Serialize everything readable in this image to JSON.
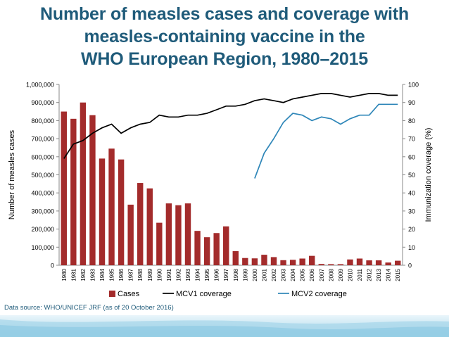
{
  "title_lines": [
    "Number of measles cases and coverage with",
    "measles-containing vaccine in the",
    "WHO European Region, 1980–2015"
  ],
  "source": "Data  source: WHO/UNICEF JRF (as of 20 October 2016)",
  "colors": {
    "title": "#1f5b7a",
    "cases_bar": "#a32b2b",
    "mcv1_line": "#000000",
    "mcv2_line": "#2e86b8"
  },
  "chart_data": {
    "type": "bar",
    "categories": [
      "1980",
      "1981",
      "1982",
      "1983",
      "1984",
      "1985",
      "1986",
      "1987",
      "1988",
      "1989",
      "1990",
      "1991",
      "1992",
      "1993",
      "1994",
      "1995",
      "1996",
      "1997",
      "1998",
      "1999",
      "2000",
      "2001",
      "2002",
      "2003",
      "2004",
      "2005",
      "2006",
      "2007",
      "2008",
      "2009",
      "2010",
      "2011",
      "2012",
      "2013",
      "2014",
      "2015"
    ],
    "series": [
      {
        "name": "Cases",
        "type": "bar",
        "axis": "left",
        "values": [
          850000,
          810000,
          900000,
          830000,
          590000,
          645000,
          585000,
          335000,
          455000,
          425000,
          235000,
          342000,
          332000,
          342000,
          190000,
          155000,
          178000,
          215000,
          78000,
          40000,
          38000,
          58000,
          45000,
          28000,
          30000,
          37000,
          52000,
          7000,
          6000,
          6000,
          32000,
          37000,
          27000,
          27000,
          15000,
          25000
        ]
      },
      {
        "name": "MCV1 coverage",
        "type": "line",
        "axis": "right",
        "values": [
          59,
          67,
          69,
          73,
          76,
          78,
          73,
          76,
          78,
          79,
          83,
          82,
          82,
          83,
          83,
          84,
          86,
          88,
          88,
          89,
          91,
          92,
          91,
          90,
          92,
          93,
          94,
          95,
          95,
          94,
          93,
          94,
          95,
          95,
          94,
          94
        ]
      },
      {
        "name": "MCV2 coverage",
        "type": "line",
        "axis": "right",
        "values": [
          null,
          null,
          null,
          null,
          null,
          null,
          null,
          null,
          null,
          null,
          null,
          null,
          null,
          null,
          null,
          null,
          null,
          null,
          null,
          null,
          48,
          62,
          70,
          79,
          84,
          83,
          80,
          82,
          81,
          78,
          81,
          83,
          83,
          89,
          89,
          89
        ]
      }
    ],
    "ylabel": "Number of measles cases",
    "y2label": "Immunization coverage (%)",
    "ylim": [
      0,
      1000000
    ],
    "y2lim": [
      0,
      100
    ],
    "yticks": [
      "0",
      "100,000",
      "200,000",
      "300,000",
      "400,000",
      "500,000",
      "600,000",
      "700,000",
      "800,000",
      "900,000",
      "1,000,000"
    ],
    "y2ticks": [
      "0",
      "10",
      "20",
      "30",
      "40",
      "50",
      "60",
      "70",
      "80",
      "90",
      "100"
    ],
    "legend": [
      "Cases",
      "MCV1 coverage",
      "MCV2 coverage"
    ],
    "legend_position": "bottom",
    "grid": false
  }
}
